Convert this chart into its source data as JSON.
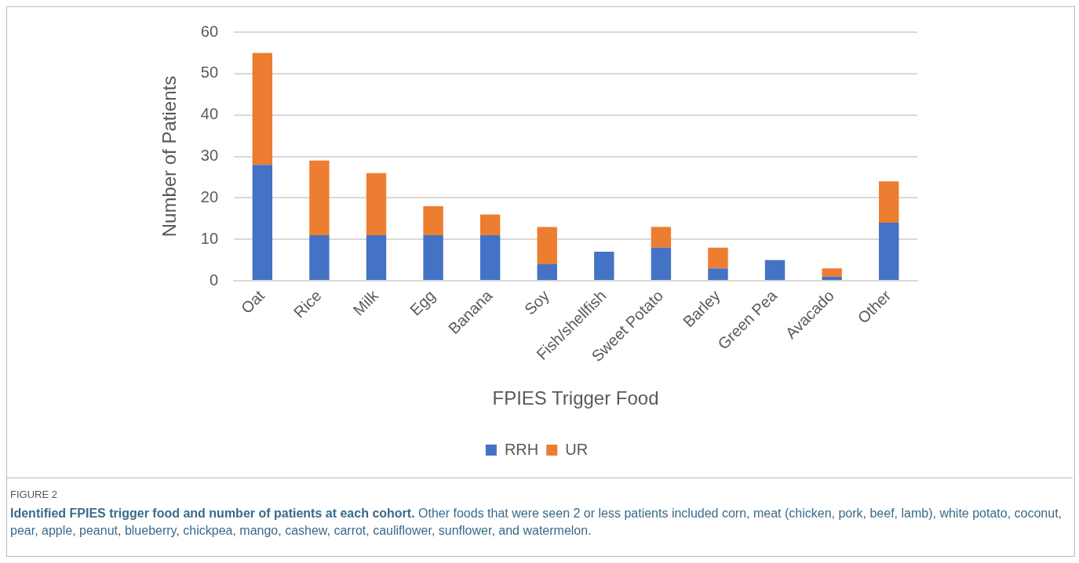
{
  "chart_data": {
    "type": "bar",
    "stacked": true,
    "xlabel": "FPIES Trigger Food",
    "ylabel": "Number of Patients",
    "categories": [
      "Oat",
      "Rice",
      "Milk",
      "Egg",
      "Banana",
      "Soy",
      "Fish/shellfish",
      "Sweet Potato",
      "Barley",
      "Green Pea",
      "Avacado",
      "Other"
    ],
    "series": [
      {
        "name": "RRH",
        "color": "#4472c4",
        "values": [
          28,
          11,
          11,
          11,
          11,
          4,
          7,
          8,
          3,
          5,
          1,
          14
        ]
      },
      {
        "name": "UR",
        "color": "#ed7d31",
        "values": [
          27,
          18,
          15,
          7,
          5,
          9,
          0,
          5,
          5,
          0,
          2,
          10
        ]
      }
    ],
    "ylim": [
      0,
      60
    ],
    "yticks": [
      0,
      10,
      20,
      30,
      40,
      50,
      60
    ],
    "grid": "y",
    "legend": "bottom",
    "annotations": [
      "FIGURE 2",
      "Identified FPIES trigger food and number of patients at each cohort.",
      "Other foods that were seen 2 or less patients included corn, meat (chicken, pork, beef, lamb), white potato, coconut, pear, apple, peanut, blueberry, chickpea, mango, cashew, carrot, cauliflower, sunflower, and watermelon."
    ]
  }
}
